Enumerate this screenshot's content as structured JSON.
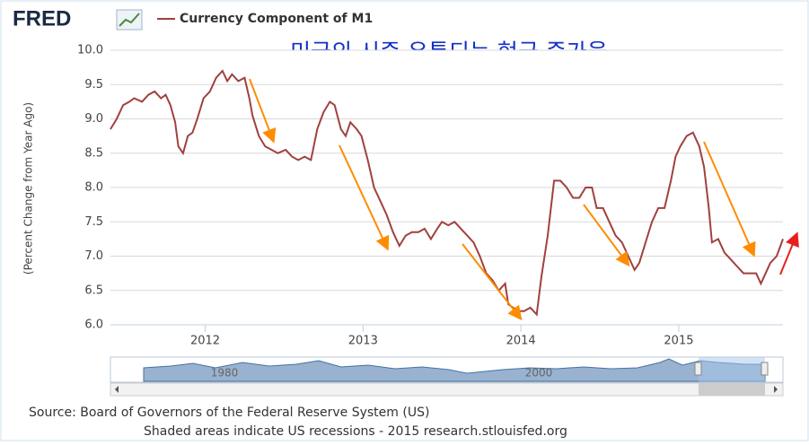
{
  "chart_data": {
    "type": "line",
    "logo": "FRED",
    "title": "Currency Component of M1",
    "annotation": "미국의 시중 유통되는 현금 증가율",
    "y_label": "(Percent Change from Year Ago)",
    "source": "Source: Board of Governors of the Federal Reserve System (US)",
    "note": "Shaded areas indicate US recessions - 2015 research.stlouisfed.org",
    "navigator_labels": [
      "1980",
      "2000"
    ],
    "xlim": [
      2011.4,
      2015.66
    ],
    "xticks": [
      2012,
      2013,
      2014,
      2015
    ],
    "ylim": [
      6,
      10
    ],
    "yticks": [
      {
        "value": 6,
        "label": "6.0"
      },
      {
        "value": 6.5,
        "label": "6.5"
      },
      {
        "value": 7,
        "label": "7.0"
      },
      {
        "value": 7.5,
        "label": "7.5"
      },
      {
        "value": 8,
        "label": "8.0"
      },
      {
        "value": 8.5,
        "label": "8.5"
      },
      {
        "value": 9,
        "label": "9.0"
      },
      {
        "value": 9.5,
        "label": "9.5"
      },
      {
        "value": 10,
        "label": "10.0"
      }
    ],
    "grid": true,
    "x": [
      2011.4,
      2011.44,
      2011.48,
      2011.52,
      2011.55,
      2011.6,
      2011.64,
      2011.68,
      2011.72,
      2011.75,
      2011.78,
      2011.81,
      2011.83,
      2011.86,
      2011.89,
      2011.92,
      2011.95,
      2011.99,
      2012.03,
      2012.07,
      2012.11,
      2012.14,
      2012.17,
      2012.21,
      2012.25,
      2012.28,
      2012.3,
      2012.34,
      2012.38,
      2012.42,
      2012.46,
      2012.51,
      2012.55,
      2012.59,
      2012.63,
      2012.67,
      2012.71,
      2012.75,
      2012.79,
      2012.82,
      2012.86,
      2012.89,
      2012.92,
      2012.96,
      2012.99,
      2013.03,
      2013.07,
      2013.11,
      2013.15,
      2013.19,
      2013.23,
      2013.27,
      2013.31,
      2013.35,
      2013.39,
      2013.43,
      2013.47,
      2013.5,
      2013.54,
      2013.58,
      2013.62,
      2013.66,
      2013.7,
      2013.74,
      2013.78,
      2013.82,
      2013.86,
      2013.9,
      2013.92,
      2013.95,
      2013.99,
      2014.02,
      2014.06,
      2014.1,
      2014.13,
      2014.17,
      2014.21,
      2014.25,
      2014.29,
      2014.33,
      2014.37,
      2014.41,
      2014.45,
      2014.48,
      2014.52,
      2014.56,
      2014.6,
      2014.64,
      2014.68,
      2014.72,
      2014.75,
      2014.79,
      2014.83,
      2014.87,
      2014.91,
      2014.95,
      2014.98,
      2015.01,
      2015.05,
      2015.09,
      2015.13,
      2015.16,
      2015.19,
      2015.21,
      2015.25,
      2015.29,
      2015.33,
      2015.37,
      2015.41,
      2015.45,
      2015.49,
      2015.52,
      2015.55,
      2015.58,
      2015.62,
      2015.66
    ],
    "series": [
      {
        "name": "Currency Component of M1",
        "color": "#a0413f",
        "values": [
          8.85,
          9.0,
          9.2,
          9.25,
          9.3,
          9.25,
          9.35,
          9.4,
          9.3,
          9.35,
          9.2,
          8.95,
          8.6,
          8.5,
          8.75,
          8.8,
          9.0,
          9.3,
          9.4,
          9.6,
          9.7,
          9.55,
          9.65,
          9.55,
          9.6,
          9.3,
          9.05,
          8.75,
          8.6,
          8.55,
          8.5,
          8.55,
          8.45,
          8.4,
          8.45,
          8.4,
          8.85,
          9.1,
          9.25,
          9.2,
          8.85,
          8.75,
          8.95,
          8.85,
          8.75,
          8.4,
          8.0,
          7.8,
          7.6,
          7.35,
          7.15,
          7.3,
          7.35,
          7.35,
          7.4,
          7.25,
          7.4,
          7.5,
          7.45,
          7.5,
          7.4,
          7.3,
          7.2,
          7.0,
          6.75,
          6.65,
          6.5,
          6.6,
          6.3,
          6.25,
          6.2,
          6.2,
          6.25,
          6.15,
          6.7,
          7.3,
          8.1,
          8.1,
          8.0,
          7.85,
          7.85,
          8.0,
          8.0,
          7.7,
          7.7,
          7.5,
          7.3,
          7.2,
          7.0,
          6.8,
          6.9,
          7.2,
          7.5,
          7.7,
          7.7,
          8.1,
          8.45,
          8.6,
          8.75,
          8.8,
          8.6,
          8.3,
          7.7,
          7.2,
          7.25,
          7.05,
          6.95,
          6.85,
          6.75,
          6.75,
          6.75,
          6.6,
          6.75,
          6.9,
          7.0,
          7.25
        ]
      }
    ]
  }
}
